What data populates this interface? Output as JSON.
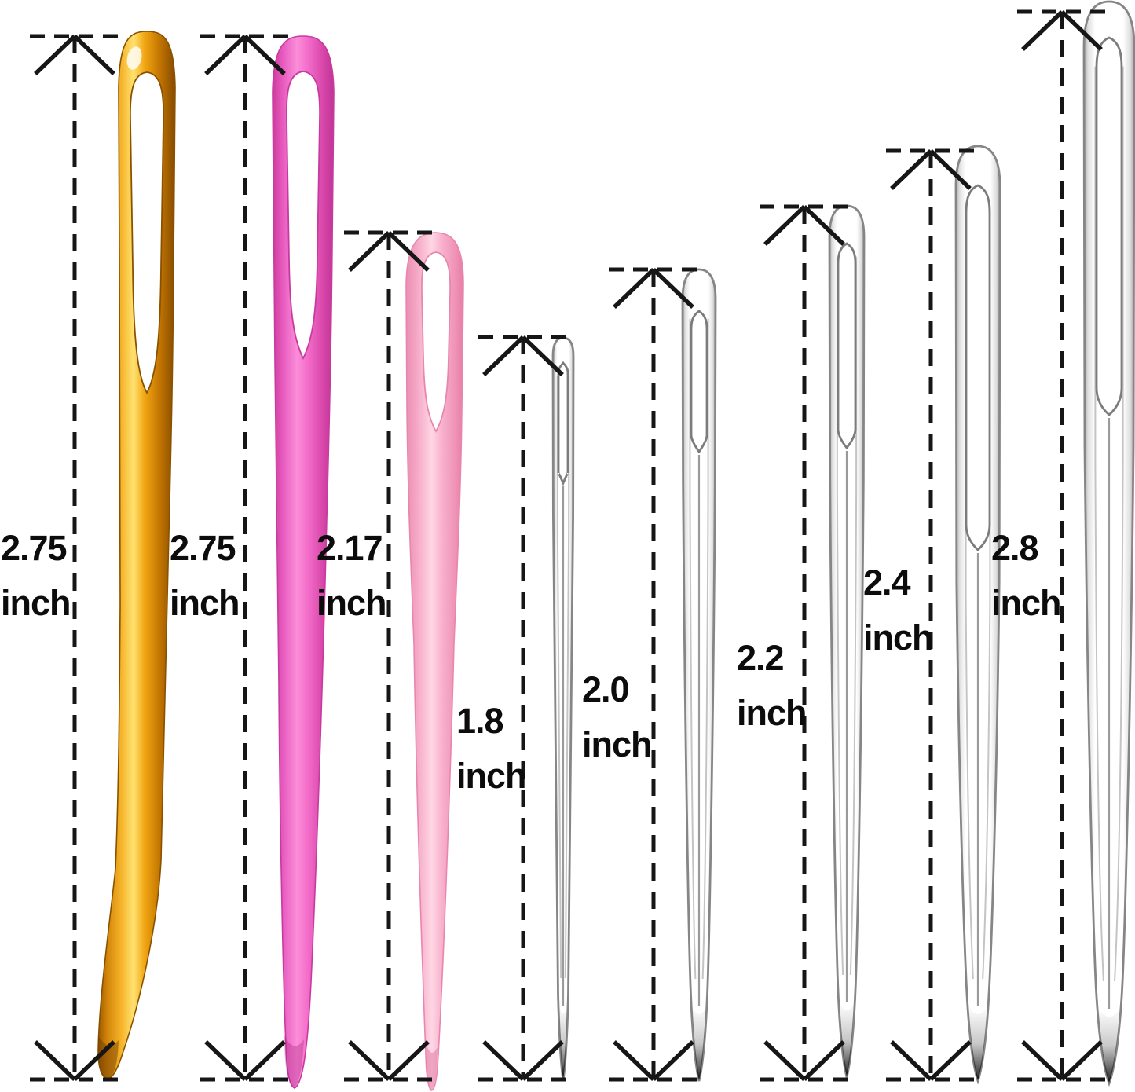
{
  "image": {
    "type": "product-size-diagram",
    "background": "#ffffff",
    "description": "Eight yarn / tapestry needles shown vertically, each with a dashed measurement arrow line and a length label"
  },
  "colors": {
    "annotation": "#161616",
    "gold_needle": "#f5b42a",
    "hot_pink_needle": "#f36cc9",
    "light_pink_needle": "#f8b1cc",
    "steel_needle": "#ffffff",
    "steel_outline": "#8a8a8a"
  },
  "measurements": [
    {
      "value": "2.75",
      "unit": "inch",
      "needle": "gold bent-tip yarn needle"
    },
    {
      "value": "2.75",
      "unit": "inch",
      "needle": "hot pink plastic yarn needle"
    },
    {
      "value": "2.17",
      "unit": "inch",
      "needle": "light pink plastic yarn needle"
    },
    {
      "value": "1.8",
      "unit": "inch",
      "needle": "small steel large-eye needle"
    },
    {
      "value": "2.0",
      "unit": "inch",
      "needle": "steel large-eye needle"
    },
    {
      "value": "2.2",
      "unit": "inch",
      "needle": "steel large-eye needle"
    },
    {
      "value": "2.4",
      "unit": "inch",
      "needle": "steel large-eye needle"
    },
    {
      "value": "2.8",
      "unit": "inch",
      "needle": "largest steel large-eye needle"
    }
  ]
}
